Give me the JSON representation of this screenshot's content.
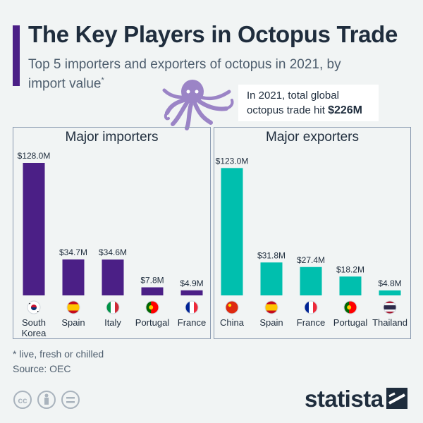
{
  "header": {
    "title": "The Key Players in Octopus Trade",
    "subtitle": "Top 5 importers and exporters of octopus in 2021, by import value",
    "subtitle_mark": "*"
  },
  "callout": {
    "text": "In 2021, total global octopus trade hit ",
    "highlight": "$226M"
  },
  "chart_data": [
    {
      "type": "bar",
      "title": "Major importers",
      "categories": [
        "South Korea",
        "Spain",
        "Italy",
        "Portugal",
        "France"
      ],
      "category_lines": [
        [
          "South",
          "Korea"
        ],
        [
          "Spain"
        ],
        [
          "Italy"
        ],
        [
          "Portugal"
        ],
        [
          "France"
        ]
      ],
      "values": [
        128.0,
        34.7,
        34.6,
        7.8,
        4.9
      ],
      "value_labels": [
        "$128.0M",
        "$34.7M",
        "$34.6M",
        "$7.8M",
        "$4.9M"
      ],
      "unit": "million USD",
      "color": "#4b1f86",
      "ylim": [
        0,
        128.0
      ]
    },
    {
      "type": "bar",
      "title": "Major exporters",
      "categories": [
        "China",
        "Spain",
        "France",
        "Portugal",
        "Thailand"
      ],
      "category_lines": [
        [
          "China"
        ],
        [
          "Spain"
        ],
        [
          "France"
        ],
        [
          "Portugal"
        ],
        [
          "Thailand"
        ]
      ],
      "values": [
        123.0,
        31.8,
        27.4,
        18.2,
        4.8
      ],
      "value_labels": [
        "$123.0M",
        "$31.8M",
        "$27.4M",
        "$18.2M",
        "$4.8M"
      ],
      "unit": "million USD",
      "color": "#00bfae",
      "ylim": [
        0,
        128.0
      ]
    }
  ],
  "footer": {
    "footnote": "* live, fresh or chilled",
    "source": "Source: OEC",
    "brand": "statista"
  },
  "colors": {
    "accent_purple": "#4b1f86",
    "accent_teal": "#00bfae",
    "octopus": "#9b84c6",
    "background": "#f1f4f4"
  }
}
